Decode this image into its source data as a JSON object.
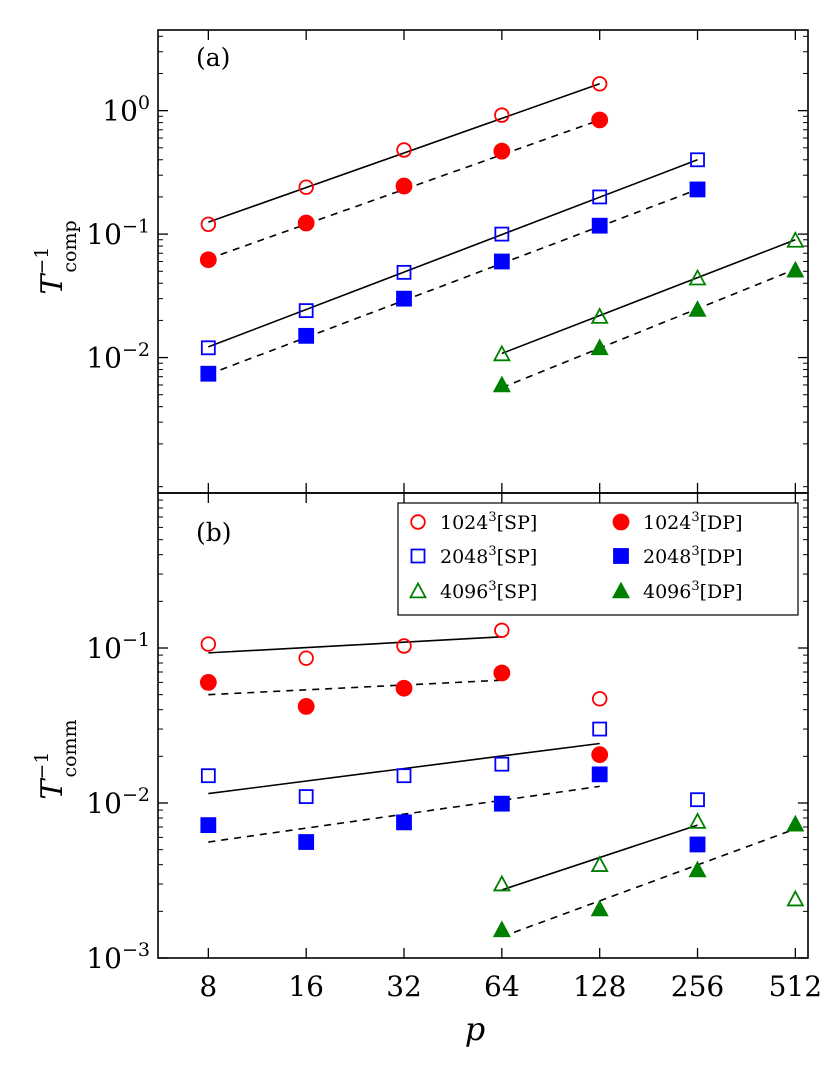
{
  "chart_data": {
    "type": "scatter",
    "xlabel": "p",
    "x_ticks": [
      8,
      16,
      32,
      64,
      128,
      256,
      512
    ],
    "x_scale": "log2",
    "legend": {
      "placement": "upper-right of panel (b)",
      "entries": [
        {
          "key": "1024SP",
          "base": "1024",
          "sup": "3",
          "tag": "[SP]",
          "color": "#ff0000",
          "marker": "circle",
          "filled": false
        },
        {
          "key": "1024DP",
          "base": "1024",
          "sup": "3",
          "tag": "[DP]",
          "color": "#ff0000",
          "marker": "circle",
          "filled": true
        },
        {
          "key": "2048SP",
          "base": "2048",
          "sup": "3",
          "tag": "[SP]",
          "color": "#0000ff",
          "marker": "square",
          "filled": false
        },
        {
          "key": "2048DP",
          "base": "2048",
          "sup": "3",
          "tag": "[DP]",
          "color": "#0000ff",
          "marker": "square",
          "filled": true
        },
        {
          "key": "4096SP",
          "base": "4096",
          "sup": "3",
          "tag": "[SP]",
          "color": "#008000",
          "marker": "triangle",
          "filled": false
        },
        {
          "key": "4096DP",
          "base": "4096",
          "sup": "3",
          "tag": "[DP]",
          "color": "#008000",
          "marker": "triangle",
          "filled": true
        }
      ]
    },
    "panels": [
      {
        "id": "a",
        "label": "(a)",
        "ylabel_main": "T",
        "ylabel_sup": "−1",
        "ylabel_sub": "comp",
        "yscale": "log",
        "ylim": [
          0.0008,
          4.5
        ],
        "y_ticks": [
          {
            "value": 1,
            "mant": "10",
            "exp": "0"
          },
          {
            "value": 0.1,
            "mant": "10",
            "exp": "−1"
          },
          {
            "value": 0.01,
            "mant": "10",
            "exp": "−2"
          }
        ],
        "series": [
          {
            "key": "1024SP",
            "x": [
              8,
              16,
              32,
              64,
              128
            ],
            "y": [
              0.12,
              0.24,
              0.48,
              0.92,
              1.65
            ]
          },
          {
            "key": "1024DP",
            "x": [
              8,
              16,
              32,
              64,
              128
            ],
            "y": [
              0.062,
              0.123,
              0.245,
              0.47,
              0.84
            ]
          },
          {
            "key": "2048SP",
            "x": [
              8,
              16,
              32,
              64,
              128,
              256
            ],
            "y": [
              0.012,
              0.024,
              0.049,
              0.1,
              0.2,
              0.4
            ]
          },
          {
            "key": "2048DP",
            "x": [
              8,
              16,
              32,
              64,
              128,
              256
            ],
            "y": [
              0.0074,
              0.015,
              0.03,
              0.06,
              0.117,
              0.23
            ]
          },
          {
            "key": "4096SP",
            "x": [
              64,
              128,
              256,
              512
            ],
            "y": [
              0.0107,
              0.0215,
              0.044,
              0.089
            ]
          },
          {
            "key": "4096DP",
            "x": [
              64,
              128,
              256,
              512
            ],
            "y": [
              0.006,
              0.012,
              0.0245,
              0.051
            ]
          }
        ],
        "fits": [
          {
            "x": [
              8,
              128
            ],
            "y": [
              0.125,
              1.65
            ],
            "style": "solid"
          },
          {
            "x": [
              8,
              128
            ],
            "y": [
              0.063,
              0.84
            ],
            "style": "dashed"
          },
          {
            "x": [
              8,
              256
            ],
            "y": [
              0.0122,
              0.4
            ],
            "style": "solid"
          },
          {
            "x": [
              8,
              256
            ],
            "y": [
              0.0073,
              0.23
            ],
            "style": "dashed"
          },
          {
            "x": [
              64,
              512
            ],
            "y": [
              0.0108,
              0.09
            ],
            "style": "solid"
          },
          {
            "x": [
              64,
              512
            ],
            "y": [
              0.0057,
              0.052
            ],
            "style": "dashed"
          }
        ]
      },
      {
        "id": "b",
        "label": "(b)",
        "ylabel_main": "T",
        "ylabel_sup": "−1",
        "ylabel_sub": "comm",
        "yscale": "log",
        "ylim": [
          0.001,
          1.0
        ],
        "y_ticks": [
          {
            "value": 0.1,
            "mant": "10",
            "exp": "−1"
          },
          {
            "value": 0.01,
            "mant": "10",
            "exp": "−2"
          },
          {
            "value": 0.001,
            "mant": "10",
            "exp": "−3"
          }
        ],
        "series": [
          {
            "key": "1024SP",
            "x": [
              8,
              16,
              32,
              64,
              128
            ],
            "y": [
              0.106,
              0.086,
              0.103,
              0.13,
              0.047
            ]
          },
          {
            "key": "1024DP",
            "x": [
              8,
              16,
              32,
              64,
              128
            ],
            "y": [
              0.06,
              0.042,
              0.055,
              0.069,
              0.0205
            ]
          },
          {
            "key": "2048SP",
            "x": [
              8,
              16,
              32,
              64,
              128,
              256
            ],
            "y": [
              0.015,
              0.011,
              0.015,
              0.0178,
              0.03,
              0.0105
            ]
          },
          {
            "key": "2048DP",
            "x": [
              8,
              16,
              32,
              64,
              128,
              256
            ],
            "y": [
              0.0072,
              0.0056,
              0.0075,
              0.0099,
              0.0153,
              0.0054
            ]
          },
          {
            "key": "4096SP",
            "x": [
              64,
              128,
              256,
              512
            ],
            "y": [
              0.003,
              0.004,
              0.0076,
              0.0024
            ]
          },
          {
            "key": "4096DP",
            "x": [
              64,
              128,
              256,
              512
            ],
            "y": [
              0.00152,
              0.00207,
              0.0037,
              0.0073
            ]
          }
        ],
        "fits": [
          {
            "x": [
              8,
              64
            ],
            "y": [
              0.093,
              0.118
            ],
            "style": "solid"
          },
          {
            "x": [
              8,
              64
            ],
            "y": [
              0.05,
              0.062
            ],
            "style": "dashed"
          },
          {
            "x": [
              8,
              128
            ],
            "y": [
              0.0115,
              0.0242
            ],
            "style": "solid"
          },
          {
            "x": [
              8,
              128
            ],
            "y": [
              0.0056,
              0.0128
            ],
            "style": "dashed"
          },
          {
            "x": [
              64,
              256
            ],
            "y": [
              0.00275,
              0.0072
            ],
            "style": "solid"
          },
          {
            "x": [
              64,
              512
            ],
            "y": [
              0.00137,
              0.0068
            ],
            "style": "dashed"
          }
        ]
      }
    ]
  }
}
